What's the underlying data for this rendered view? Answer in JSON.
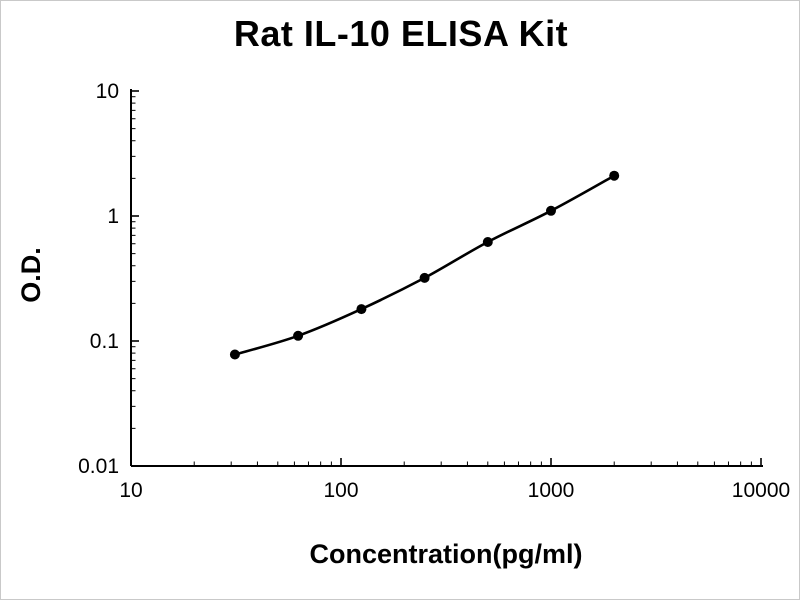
{
  "chart_data": {
    "type": "line",
    "title": "Rat IL-10 ELISA Kit",
    "xlabel": "Concentration(pg/ml)",
    "ylabel": "O.D.",
    "x_scale": "log",
    "y_scale": "log",
    "xlim": [
      10,
      10000
    ],
    "ylim": [
      0.01,
      10
    ],
    "x_ticks": [
      10,
      100,
      1000,
      10000
    ],
    "y_ticks": [
      0.01,
      0.1,
      1,
      10
    ],
    "x": [
      31.25,
      62.5,
      125,
      250,
      500,
      1000,
      2000
    ],
    "y": [
      0.078,
      0.11,
      0.18,
      0.32,
      0.62,
      1.1,
      2.1
    ],
    "grid": false,
    "legend_position": "none",
    "marker": "circle",
    "line_color": "#000000",
    "marker_color": "#000000",
    "axis_color": "#000000",
    "background_color": "#ffffff"
  }
}
